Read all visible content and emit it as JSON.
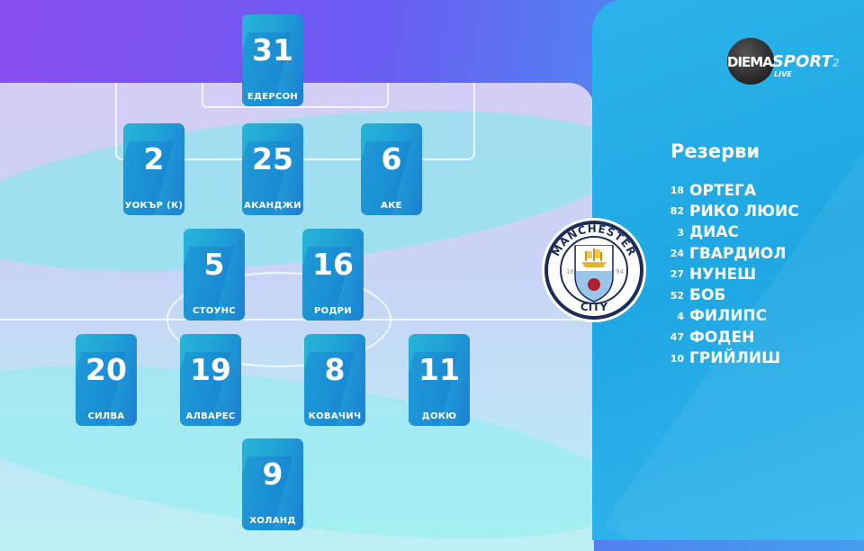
{
  "broadcaster": {
    "logo_text": "DIEMA SPORT 2",
    "live": "LIVE"
  },
  "club": {
    "name": "MANCHESTER CITY",
    "top": "MANCHESTER",
    "bottom": "CITY",
    "year_left": "18",
    "year_right": "94"
  },
  "lineup": [
    {
      "number": "31",
      "name": "ЕДЕРСОН"
    },
    {
      "number": "2",
      "name": "УОКЪР (К)"
    },
    {
      "number": "25",
      "name": "АКАНДЖИ"
    },
    {
      "number": "6",
      "name": "АКЕ"
    },
    {
      "number": "5",
      "name": "СТОУНС"
    },
    {
      "number": "16",
      "name": "РОДРИ"
    },
    {
      "number": "20",
      "name": "СИЛВА"
    },
    {
      "number": "19",
      "name": "АЛВАРЕС"
    },
    {
      "number": "8",
      "name": "КОВАЧИЧ"
    },
    {
      "number": "11",
      "name": "ДОКЮ"
    },
    {
      "number": "9",
      "name": "ХОЛАНД"
    }
  ],
  "reserves": {
    "title": "Резерви",
    "players": [
      {
        "number": "18",
        "name": "ОРТЕГА"
      },
      {
        "number": "82",
        "name": "РИКО ЛЮИС"
      },
      {
        "number": "3",
        "name": "ДИАС"
      },
      {
        "number": "24",
        "name": "ГВАРДИОЛ"
      },
      {
        "number": "27",
        "name": "НУНЕШ"
      },
      {
        "number": "52",
        "name": "БОБ"
      },
      {
        "number": "4",
        "name": "ФИЛИПС"
      },
      {
        "number": "47",
        "name": "ФОДЕН"
      },
      {
        "number": "10",
        "name": "ГРИЙЛИШ"
      }
    ]
  },
  "colors": {
    "card": "#1e9fd6",
    "panel": "#29aee6",
    "purple": "#7a4cf0"
  }
}
